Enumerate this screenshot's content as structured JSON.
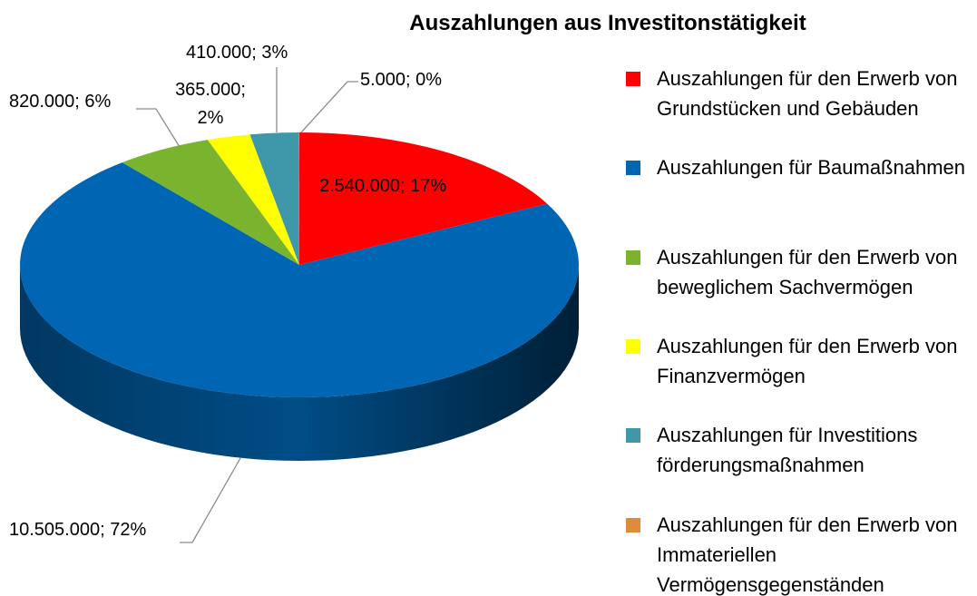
{
  "chart_data": {
    "type": "pie3d",
    "title": "Auszahlungen aus Investitonstätigkeit",
    "categories": [
      "Auszahlungen für den Erwerb von Grundstücken und Gebäuden",
      "Auszahlungen für Baumaßnahmen",
      "Auszahlungen für den Erwerb von beweglichem Sachvermögen",
      "Auszahlungen für den Erwerb von Finanzvermögen",
      "Auszahlungen für Investitions förderungsmaßnahmen",
      "Auszahlungen für den Erwerb von Immateriellen Vermögensgegenständen"
    ],
    "values": [
      2540000,
      10505000,
      820000,
      365000,
      410000,
      5000
    ],
    "value_labels": [
      "2.540.000; 17%",
      "10.505.000; 72%",
      "820.000; 6%",
      "365.000; 2%",
      "410.000; 3%",
      "5.000; 0%"
    ],
    "colors": [
      "#ff0000",
      "#0066b3",
      "#7ab32e",
      "#ffff00",
      "#3f97aa",
      "#e08a3c"
    ],
    "legend": "right"
  }
}
